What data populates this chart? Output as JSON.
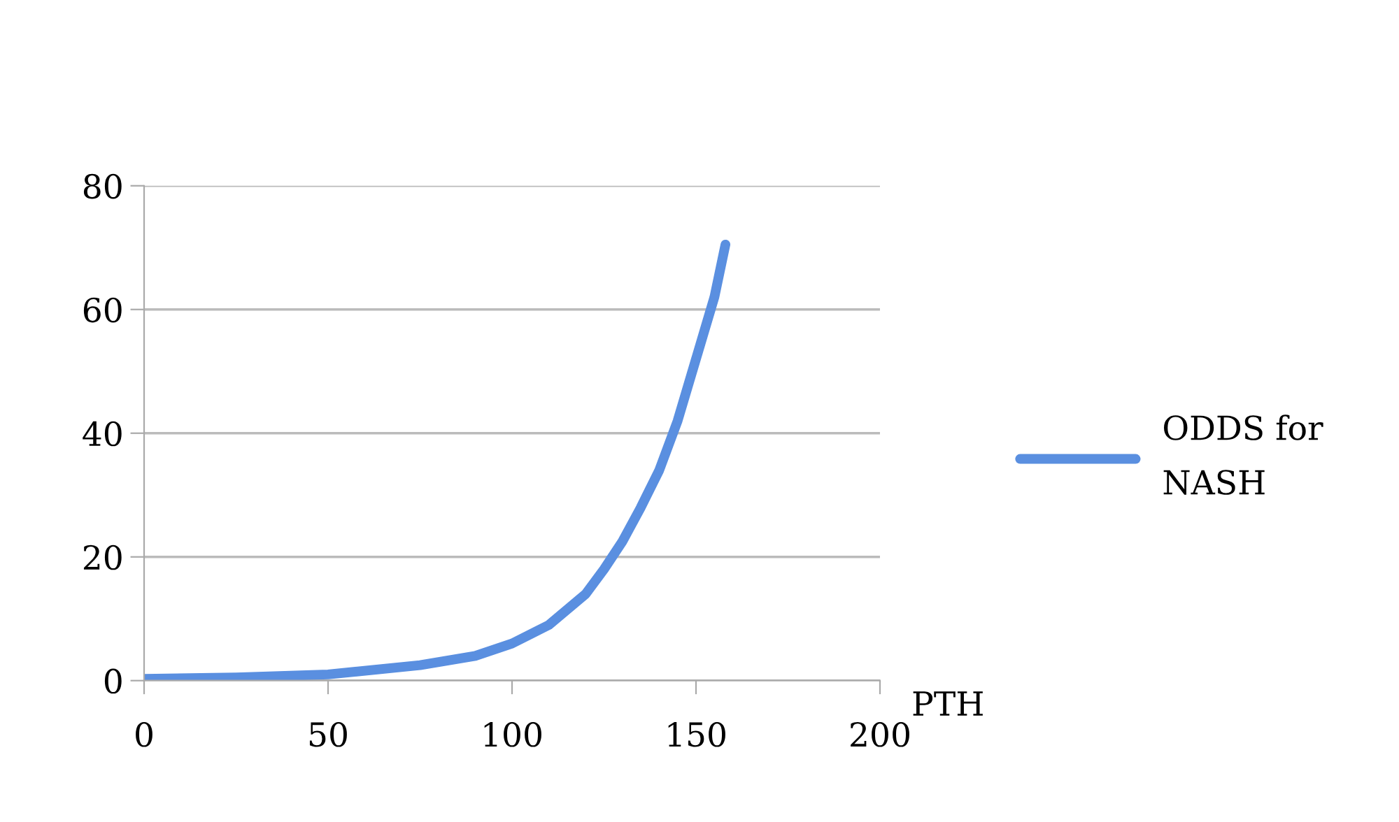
{
  "chart_data": {
    "type": "line",
    "xlabel": "PTH",
    "xlim": [
      0,
      200
    ],
    "xticks": [
      0,
      50,
      100,
      150,
      200
    ],
    "ylim": [
      0,
      80
    ],
    "yticks": [
      0,
      20,
      40,
      60,
      80
    ],
    "grid": "y",
    "legend": "right",
    "marker": "none",
    "line_style": "solid",
    "series": [
      {
        "name": "ODDS for NASH",
        "color": "#5a8fe0",
        "x": [
          0,
          25,
          50,
          75,
          90,
          100,
          110,
          120,
          125,
          130,
          135,
          140,
          145,
          150,
          155,
          158
        ],
        "values": [
          0.3,
          0.5,
          1,
          2.5,
          4,
          6,
          9,
          14,
          18,
          22.5,
          28,
          34,
          42,
          52,
          62,
          70.5
        ]
      }
    ]
  }
}
